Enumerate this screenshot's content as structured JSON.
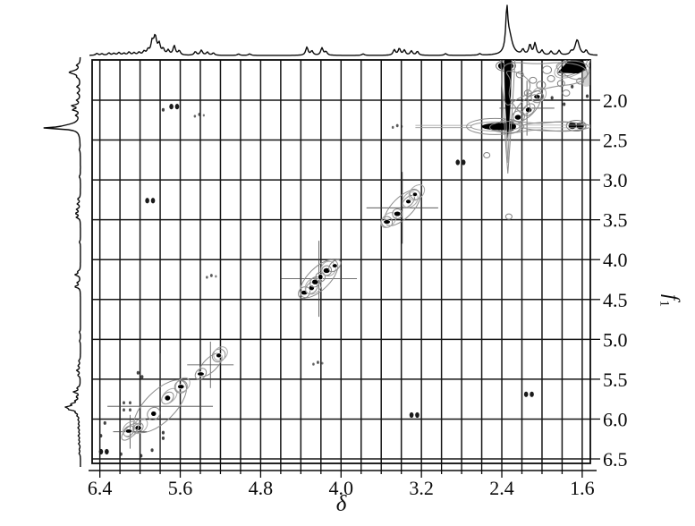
{
  "figure": {
    "kind": "2D homonuclear NMR contour spectrum with 1D projection traces",
    "colors": {
      "background": "#ffffff",
      "ink": "#0a0a0a",
      "contour_gray": "#8a8a8a",
      "light_gray": "#aaaaaa"
    }
  },
  "chart_data": {
    "type": "scatter",
    "title": "",
    "x_axis": {
      "label": "δ",
      "range_left": 6.477,
      "range_right": 1.519,
      "major_ticks": [
        6.4,
        5.6,
        4.8,
        4.0,
        3.2,
        2.4,
        1.6
      ],
      "minor_tick_step": 0.2,
      "grid_step_ppm": 0.2
    },
    "y_axis": {
      "label_main": "f",
      "label_sub": "1",
      "range_top": 1.495,
      "range_bottom": 6.556,
      "ticks": [
        2.0,
        2.5,
        3.0,
        3.5,
        4.0,
        4.5,
        5.0,
        5.5,
        6.0,
        6.5
      ],
      "grid_step_ppm": 0.5
    },
    "projection_peaks": [
      [
        6.43,
        0.05
      ],
      [
        6.38,
        0.04
      ],
      [
        6.31,
        0.06
      ],
      [
        6.26,
        0.05
      ],
      [
        6.21,
        0.07
      ],
      [
        6.16,
        0.05
      ],
      [
        6.11,
        0.08
      ],
      [
        6.06,
        0.06
      ],
      [
        6.01,
        0.07
      ],
      [
        5.96,
        0.09
      ],
      [
        5.92,
        0.12
      ],
      [
        5.88,
        0.3
      ],
      [
        5.85,
        0.46,
        0.018
      ],
      [
        5.81,
        0.26
      ],
      [
        5.77,
        0.14
      ],
      [
        5.72,
        0.12
      ],
      [
        5.66,
        0.24
      ],
      [
        5.61,
        0.11
      ],
      [
        5.45,
        0.09
      ],
      [
        5.39,
        0.13
      ],
      [
        5.33,
        0.08
      ],
      [
        5.27,
        0.06
      ],
      [
        5.02,
        0.035
      ],
      [
        4.91,
        0.04
      ],
      [
        4.34,
        0.21
      ],
      [
        4.29,
        0.11
      ],
      [
        4.19,
        0.19
      ],
      [
        4.15,
        0.09
      ],
      [
        3.78,
        0.04
      ],
      [
        3.47,
        0.14
      ],
      [
        3.42,
        0.17
      ],
      [
        3.37,
        0.13
      ],
      [
        3.3,
        0.11
      ],
      [
        3.24,
        0.1
      ],
      [
        2.96,
        0.045
      ],
      [
        2.62,
        0.04
      ],
      [
        2.35,
        1.0,
        0.012
      ],
      [
        2.325,
        0.5,
        0.035
      ],
      [
        2.19,
        0.13
      ],
      [
        2.12,
        0.26
      ],
      [
        2.07,
        0.3
      ],
      [
        2.0,
        0.12
      ],
      [
        1.91,
        0.1
      ],
      [
        1.83,
        0.12
      ],
      [
        1.71,
        0.08
      ],
      [
        1.65,
        0.4,
        0.025
      ],
      [
        1.56,
        0.12
      ]
    ],
    "diagonal_peaks_ppm": [
      6.36,
      6.1,
      5.8,
      5.3,
      4.22,
      3.39,
      2.81,
      2.33,
      2.15,
      1.66
    ],
    "cross_peaks_ppm": [
      [
        5.66,
        2.08
      ],
      [
        5.77,
        2.12
      ],
      [
        5.41,
        2.19
      ],
      [
        5.9,
        3.26
      ],
      [
        5.29,
        4.21
      ],
      [
        4.23,
        5.3
      ],
      [
        3.27,
        5.95
      ],
      [
        2.13,
        5.69
      ],
      [
        3.44,
        2.33
      ],
      [
        2.36,
        1.57
      ],
      [
        1.66,
        2.32
      ]
    ],
    "streaks": {
      "horizontal_f1": 2.33,
      "horizontal_from": 3.26,
      "horizontal_to": 1.52,
      "vertical_delta": 2.34,
      "vertical_from": 1.495,
      "vertical_to": 2.92
    },
    "features": [
      {
        "t": "cluster",
        "x": 5.8,
        "y": 5.84,
        "w": 0.5,
        "n": 4
      },
      {
        "t": "cluster",
        "x": 6.1,
        "y": 6.16,
        "w": 0.16,
        "n": 1
      },
      {
        "t": "cluster",
        "x": 5.3,
        "y": 5.32,
        "w": 0.22,
        "n": 2
      },
      {
        "t": "cluster",
        "x": 4.22,
        "y": 4.24,
        "w": 0.36,
        "n": 6
      },
      {
        "t": "cluster",
        "x": 3.39,
        "y": 3.35,
        "w": 0.34,
        "n": 4
      },
      {
        "t": "cluster",
        "x": 2.15,
        "y": 2.1,
        "w": 0.26,
        "n": 3
      },
      {
        "t": "pairdots",
        "x": 6.36,
        "y": 6.41
      },
      {
        "t": "pairdots",
        "x": 5.66,
        "y": 2.08
      },
      {
        "t": "pairdots",
        "x": 5.9,
        "y": 3.26
      },
      {
        "t": "pairdots",
        "x": 3.27,
        "y": 5.95
      },
      {
        "t": "pairdots",
        "x": 2.13,
        "y": 5.69
      },
      {
        "t": "pairdots",
        "x": 2.81,
        "y": 2.78
      },
      {
        "t": "speckgrid",
        "x": 6.13,
        "y": 5.84
      },
      {
        "t": "speckrow",
        "x": 5.41,
        "y": 2.19
      },
      {
        "t": "speckrow",
        "x": 5.29,
        "y": 4.21
      },
      {
        "t": "speckrow",
        "x": 4.23,
        "y": 5.3
      },
      {
        "t": "speckrow",
        "x": 3.44,
        "y": 2.33
      },
      {
        "t": "speck",
        "x": 6.39,
        "y": 6.21
      },
      {
        "t": "speck",
        "x": 6.35,
        "y": 6.05
      },
      {
        "t": "speck",
        "x": 6.19,
        "y": 6.44
      },
      {
        "t": "speck",
        "x": 5.99,
        "y": 6.46
      },
      {
        "t": "speck",
        "x": 5.77,
        "y": 6.17
      },
      {
        "t": "speck",
        "x": 5.77,
        "y": 6.24
      },
      {
        "t": "speck",
        "x": 6.02,
        "y": 5.42
      },
      {
        "t": "speck",
        "x": 5.98,
        "y": 5.47
      },
      {
        "t": "speck",
        "x": 5.88,
        "y": 6.39
      },
      {
        "t": "speck",
        "x": 5.77,
        "y": 2.12
      },
      {
        "t": "speck",
        "x": 1.7,
        "y": 1.83
      },
      {
        "t": "speck",
        "x": 1.55,
        "y": 1.95
      },
      {
        "t": "speck",
        "x": 1.9,
        "y": 1.97
      },
      {
        "t": "speck",
        "x": 1.78,
        "y": 2.05
      },
      {
        "t": "ring",
        "x": 2.55,
        "y": 2.69,
        "r": 3.5
      },
      {
        "t": "ring",
        "x": 2.33,
        "y": 3.46,
        "r": 3.5
      },
      {
        "t": "ring",
        "x": 2.09,
        "y": 1.75,
        "r": 4
      },
      {
        "t": "ring",
        "x": 2.01,
        "y": 1.81,
        "r": 5
      },
      {
        "t": "ring",
        "x": 1.91,
        "y": 1.73,
        "r": 4
      },
      {
        "t": "ring",
        "x": 1.81,
        "y": 1.79,
        "r": 4
      },
      {
        "t": "ring",
        "x": 1.76,
        "y": 1.91,
        "r": 4
      },
      {
        "t": "ring",
        "x": 2.14,
        "y": 1.91,
        "r": 4
      },
      {
        "t": "ring",
        "x": 1.62,
        "y": 1.76,
        "r": 4
      },
      {
        "t": "ring",
        "x": 1.95,
        "y": 1.62,
        "r": 5
      },
      {
        "t": "ring",
        "x": 2.22,
        "y": 1.68,
        "r": 4
      },
      {
        "t": "ring",
        "x": 2.02,
        "y": 1.95,
        "r": 4
      },
      {
        "t": "blob",
        "x": 2.33,
        "y": 2.33
      },
      {
        "t": "blob2",
        "x": 1.66,
        "y": 2.32
      },
      {
        "t": "blob2",
        "x": 2.36,
        "y": 1.57
      },
      {
        "t": "blobtri",
        "x": 1.7,
        "y": 1.58,
        "w": 0.29,
        "h": 0.17
      },
      {
        "t": "patch",
        "x": 1.56,
        "y": 1.72,
        "w": 0.09,
        "h": 0.22
      },
      {
        "t": "hstreak",
        "y": 2.33,
        "thinFrom": 3.26,
        "thinTo": 2.7,
        "lensFrom": 2.75,
        "lensTo": 2.18,
        "coreFrom": 2.6,
        "coreTo": 2.26,
        "bandFrom": 2.2,
        "bandTo": 1.52
      },
      {
        "t": "vstreak",
        "x": 2.34,
        "from": 1.495,
        "to": 2.92,
        "coreTo": 2.5
      },
      {
        "t": "outline",
        "pts": [
          [
            2.4,
            1.57
          ],
          [
            2.28,
            1.52
          ],
          [
            2.05,
            1.55
          ],
          [
            1.8,
            1.52
          ],
          [
            1.58,
            1.57
          ],
          [
            1.53,
            1.7
          ],
          [
            1.66,
            1.8
          ],
          [
            1.85,
            1.82
          ],
          [
            2.05,
            1.88
          ],
          [
            2.25,
            1.98
          ],
          [
            2.36,
            2.1
          ],
          [
            2.4,
            1.85
          ]
        ]
      },
      {
        "t": "outline",
        "pts": [
          [
            2.52,
            2.3
          ],
          [
            2.3,
            2.25
          ],
          [
            2.05,
            2.3
          ],
          [
            1.8,
            2.26
          ],
          [
            1.58,
            2.3
          ],
          [
            1.55,
            2.36
          ],
          [
            1.8,
            2.4
          ],
          [
            2.05,
            2.36
          ],
          [
            2.3,
            2.42
          ],
          [
            2.52,
            2.38
          ]
        ]
      },
      {
        "t": "outline",
        "pts": [
          [
            2.38,
            1.62
          ],
          [
            2.3,
            1.75
          ],
          [
            2.34,
            1.95
          ],
          [
            2.26,
            2.1
          ],
          [
            2.18,
            2.2
          ],
          [
            2.1,
            2.12
          ],
          [
            2.16,
            1.95
          ],
          [
            2.1,
            1.8
          ],
          [
            2.2,
            1.66
          ]
        ]
      },
      {
        "t": "outline",
        "pts": [
          [
            1.88,
            1.56
          ],
          [
            1.8,
            1.66
          ],
          [
            1.7,
            1.74
          ],
          [
            1.58,
            1.74
          ],
          [
            1.51,
            1.62
          ],
          [
            1.58,
            1.52
          ],
          [
            1.75,
            1.5
          ]
        ]
      }
    ]
  }
}
